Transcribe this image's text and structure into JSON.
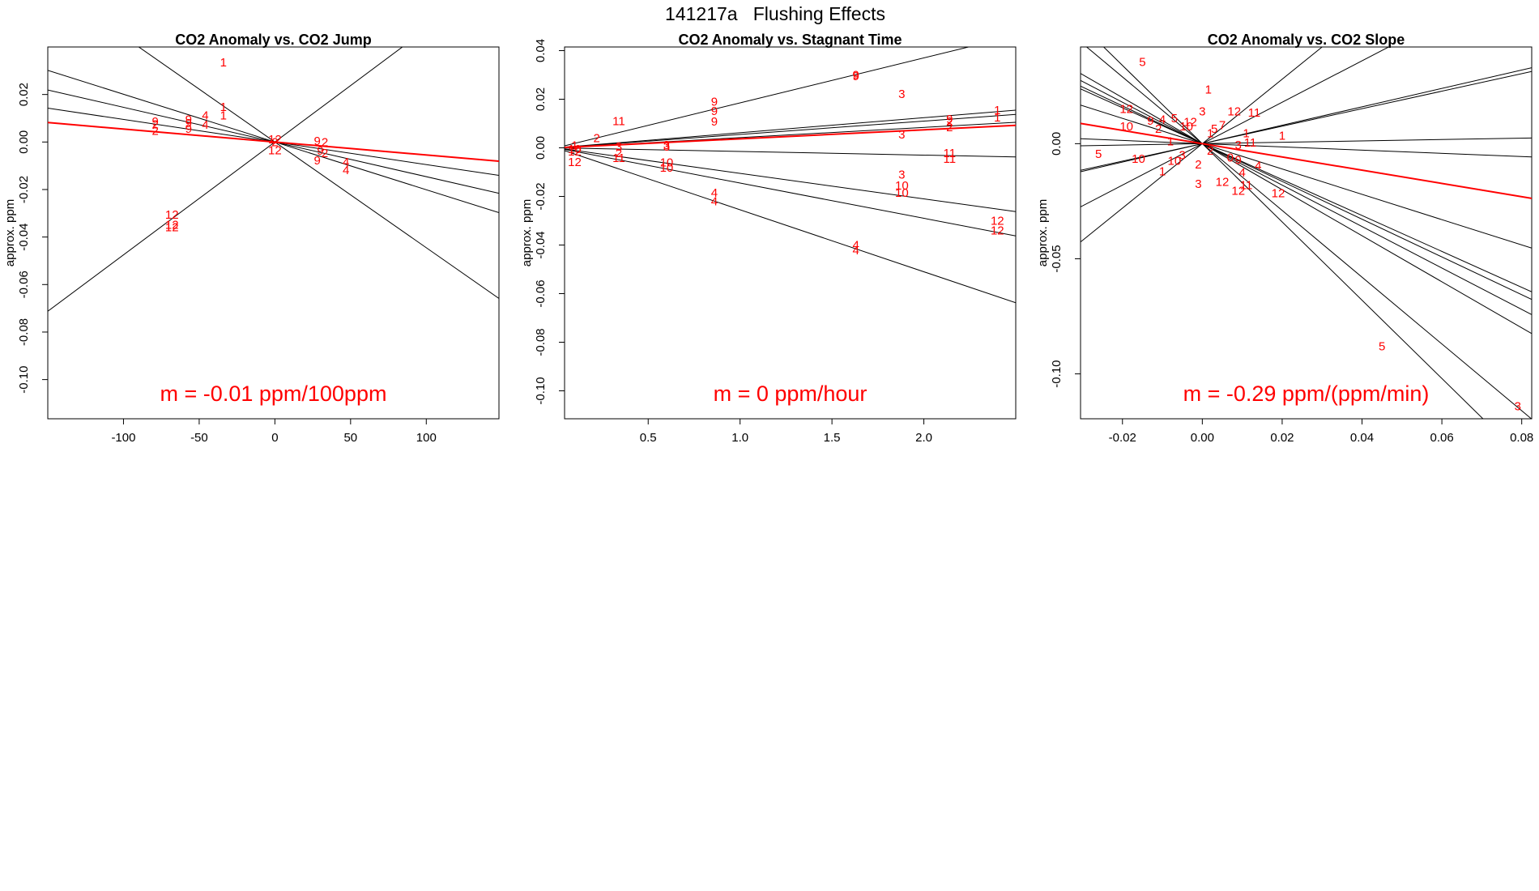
{
  "title": "141217a   Flushing Effects",
  "colors": {
    "fit": "#ff0000",
    "lines": "#000000",
    "points": "#ff0000"
  },
  "chart_data": [
    {
      "type": "scatter",
      "title": "CO2 Anomaly vs. CO2 Jump",
      "xlabel": "",
      "ylabel": "approx. ppm",
      "xlim": [
        -150,
        148
      ],
      "ylim": [
        -0.1165,
        0.04
      ],
      "xticks": [
        -100,
        -50,
        0,
        50,
        100
      ],
      "xtick_labels": [
        "-100",
        "-50",
        "0",
        "50",
        "100"
      ],
      "yticks": [
        -0.1,
        -0.08,
        -0.06,
        -0.04,
        -0.02,
        0.0,
        0.02
      ],
      "ytick_labels": [
        "-0.10",
        "-0.08",
        "-0.06",
        "-0.04",
        "-0.02",
        "0.00",
        "0.02"
      ],
      "slope_label": "m = -0.01 ppm/100ppm",
      "fit_slope": -5.46e-05,
      "line_slopes": [
        -0.000445,
        0.000475,
        -0.000201,
        -0.000146,
        -9.5e-05
      ],
      "points": [
        {
          "x": -34,
          "y": 0.0335,
          "label": "1"
        },
        {
          "x": -34,
          "y": 0.0148,
          "label": "1"
        },
        {
          "x": -34,
          "y": 0.0112,
          "label": "1"
        },
        {
          "x": -46,
          "y": 0.0112,
          "label": "4"
        },
        {
          "x": -46,
          "y": 0.0073,
          "label": "4"
        },
        {
          "x": -57,
          "y": 0.0094,
          "label": "9"
        },
        {
          "x": -57,
          "y": 0.008,
          "label": "9"
        },
        {
          "x": -57,
          "y": 0.0056,
          "label": "9"
        },
        {
          "x": -79,
          "y": 0.0087,
          "label": "9"
        },
        {
          "x": -79,
          "y": 0.0075,
          "label": "2"
        },
        {
          "x": -79,
          "y": 0.0047,
          "label": "2"
        },
        {
          "x": -68,
          "y": -0.0305,
          "label": "12"
        },
        {
          "x": -68,
          "y": -0.0348,
          "label": "12"
        },
        {
          "x": -68,
          "y": -0.0358,
          "label": "12"
        },
        {
          "x": 0,
          "y": 0.0012,
          "label": "12"
        },
        {
          "x": 0,
          "y": 0.0,
          "label": "2"
        },
        {
          "x": 0,
          "y": -0.0035,
          "label": "12"
        },
        {
          "x": 28,
          "y": 0.0005,
          "label": "9"
        },
        {
          "x": 33,
          "y": -0.0,
          "label": "2"
        },
        {
          "x": 30,
          "y": -0.0036,
          "label": "9"
        },
        {
          "x": 33,
          "y": -0.0047,
          "label": "2"
        },
        {
          "x": 28,
          "y": -0.0078,
          "label": "9"
        },
        {
          "x": 47,
          "y": -0.0085,
          "label": "4"
        },
        {
          "x": 47,
          "y": -0.0118,
          "label": "4"
        }
      ]
    },
    {
      "type": "scatter",
      "title": "CO2 Anomaly vs. Stagnant Time",
      "xlabel": "",
      "ylabel": "approx. ppm",
      "xlim": [
        0.045,
        2.5
      ],
      "ylim": [
        -0.1115,
        0.0415
      ],
      "xticks": [
        0.5,
        1.0,
        1.5,
        2.0
      ],
      "xtick_labels": [
        "0.5",
        "1.0",
        "1.5",
        "2.0"
      ],
      "yticks": [
        -0.1,
        -0.08,
        -0.06,
        -0.04,
        -0.02,
        0.0,
        0.02,
        0.04
      ],
      "ytick_labels": [
        "-0.10",
        "-0.08",
        "-0.06",
        "-0.04",
        "-0.02",
        "0.00",
        "0.02",
        "0.04"
      ],
      "slope_label": "m = 0 ppm/hour",
      "fit_slope": 0.0037,
      "line_slopes": [
        0.0185,
        0.0062,
        0.0055,
        0.0042,
        -0.0015,
        -0.0105,
        -0.0145,
        -0.0255
      ],
      "points": [
        {
          "x": 1.63,
          "y": 0.03,
          "label": "9"
        },
        {
          "x": 1.63,
          "y": 0.0295,
          "label": "9"
        },
        {
          "x": 0.86,
          "y": 0.019,
          "label": "9"
        },
        {
          "x": 0.86,
          "y": 0.0152,
          "label": "9"
        },
        {
          "x": 0.86,
          "y": 0.0108,
          "label": "9"
        },
        {
          "x": 0.34,
          "y": 0.011,
          "label": "11"
        },
        {
          "x": 0.22,
          "y": 0.004,
          "label": "2"
        },
        {
          "x": 0.1,
          "y": 0.001,
          "label": "1"
        },
        {
          "x": 0.1,
          "y": -0.0005,
          "label": "10"
        },
        {
          "x": 0.1,
          "y": -0.0015,
          "label": "12"
        },
        {
          "x": 0.1,
          "y": -0.0058,
          "label": "12"
        },
        {
          "x": 0.34,
          "y": 0.0005,
          "label": "3"
        },
        {
          "x": 0.34,
          "y": -0.0022,
          "label": "2"
        },
        {
          "x": 0.34,
          "y": -0.0042,
          "label": "11"
        },
        {
          "x": 0.6,
          "y": 0.0012,
          "label": "3"
        },
        {
          "x": 0.6,
          "y": 0.0005,
          "label": "3"
        },
        {
          "x": 0.6,
          "y": -0.006,
          "label": "10"
        },
        {
          "x": 0.6,
          "y": -0.0082,
          "label": "10"
        },
        {
          "x": 0.86,
          "y": -0.0185,
          "label": "4"
        },
        {
          "x": 0.86,
          "y": -0.022,
          "label": "4"
        },
        {
          "x": 1.63,
          "y": -0.04,
          "label": "4"
        },
        {
          "x": 1.63,
          "y": -0.0422,
          "label": "4"
        },
        {
          "x": 1.88,
          "y": 0.0222,
          "label": "3"
        },
        {
          "x": 1.88,
          "y": 0.0055,
          "label": "3"
        },
        {
          "x": 1.88,
          "y": -0.011,
          "label": "3"
        },
        {
          "x": 1.88,
          "y": -0.0155,
          "label": "10"
        },
        {
          "x": 1.88,
          "y": -0.0185,
          "label": "10"
        },
        {
          "x": 2.14,
          "y": 0.0118,
          "label": "9"
        },
        {
          "x": 2.14,
          "y": 0.0108,
          "label": "2"
        },
        {
          "x": 2.14,
          "y": 0.0085,
          "label": "2"
        },
        {
          "x": 2.14,
          "y": -0.0022,
          "label": "11"
        },
        {
          "x": 2.14,
          "y": -0.0045,
          "label": "11"
        },
        {
          "x": 2.4,
          "y": 0.0155,
          "label": "1"
        },
        {
          "x": 2.4,
          "y": 0.0125,
          "label": "1"
        },
        {
          "x": 2.4,
          "y": -0.03,
          "label": "12"
        },
        {
          "x": 2.4,
          "y": -0.034,
          "label": "12"
        }
      ]
    },
    {
      "type": "scatter",
      "title": "CO2 Anomaly vs. CO2 Slope",
      "xlabel": "",
      "ylabel": "approx. ppm",
      "xlim": [
        -0.0305,
        0.0825
      ],
      "ylim": [
        -0.1195,
        0.042
      ],
      "xticks": [
        -0.02,
        0.0,
        0.02,
        0.04,
        0.06,
        0.08
      ],
      "xtick_labels": [
        "-0.02",
        "0.00",
        "0.02",
        "0.04",
        "0.06",
        "0.08"
      ],
      "yticks": [
        -0.1,
        -0.05,
        0.0
      ],
      "ytick_labels": [
        "-0.10",
        "-0.05",
        "0.00"
      ],
      "slope_label": "m = -0.29 ppm/(ppm/min)",
      "fit_slope": -0.288,
      "line_slopes": [
        1.4,
        0.9,
        0.38,
        0.4,
        0.03,
        -0.07,
        -0.55,
        -0.78,
        -0.82,
        -0.9,
        -1.0,
        -1.7,
        -1.45
      ],
      "points": [
        {
          "x": -0.015,
          "y": 0.0355,
          "label": "5"
        },
        {
          "x": 0.0015,
          "y": 0.0235,
          "label": "1"
        },
        {
          "x": 0.0,
          "y": 0.014,
          "label": "3"
        },
        {
          "x": 0.008,
          "y": 0.014,
          "label": "12"
        },
        {
          "x": 0.013,
          "y": 0.0135,
          "label": "11"
        },
        {
          "x": -0.019,
          "y": 0.015,
          "label": "12"
        },
        {
          "x": -0.013,
          "y": 0.01,
          "label": "9"
        },
        {
          "x": -0.01,
          "y": 0.0105,
          "label": "4"
        },
        {
          "x": -0.007,
          "y": 0.011,
          "label": "5"
        },
        {
          "x": -0.003,
          "y": 0.0095,
          "label": "12"
        },
        {
          "x": -0.019,
          "y": 0.0075,
          "label": "10"
        },
        {
          "x": -0.011,
          "y": 0.0065,
          "label": "2"
        },
        {
          "x": -0.004,
          "y": 0.0075,
          "label": "10"
        },
        {
          "x": 0.005,
          "y": 0.008,
          "label": "7"
        },
        {
          "x": 0.003,
          "y": 0.0065,
          "label": "5"
        },
        {
          "x": 0.002,
          "y": 0.0045,
          "label": "1"
        },
        {
          "x": 0.011,
          "y": 0.0045,
          "label": "1"
        },
        {
          "x": 0.02,
          "y": 0.0035,
          "label": "1"
        },
        {
          "x": 0.012,
          "y": 0.0005,
          "label": "11"
        },
        {
          "x": -0.008,
          "y": 0.001,
          "label": "1"
        },
        {
          "x": 0.009,
          "y": -0.0005,
          "label": "3"
        },
        {
          "x": 0.002,
          "y": -0.003,
          "label": "2"
        },
        {
          "x": -0.005,
          "y": -0.005,
          "label": "3"
        },
        {
          "x": -0.007,
          "y": -0.0075,
          "label": "10"
        },
        {
          "x": -0.016,
          "y": -0.0065,
          "label": "10"
        },
        {
          "x": -0.026,
          "y": -0.0045,
          "label": "5"
        },
        {
          "x": -0.01,
          "y": -0.012,
          "label": "1"
        },
        {
          "x": -0.001,
          "y": -0.009,
          "label": "2"
        },
        {
          "x": 0.007,
          "y": -0.006,
          "label": "0"
        },
        {
          "x": 0.009,
          "y": -0.007,
          "label": "9"
        },
        {
          "x": 0.014,
          "y": -0.0095,
          "label": "4"
        },
        {
          "x": 0.01,
          "y": -0.0125,
          "label": "4"
        },
        {
          "x": -0.001,
          "y": -0.0175,
          "label": "3"
        },
        {
          "x": 0.005,
          "y": -0.0165,
          "label": "12"
        },
        {
          "x": 0.011,
          "y": -0.018,
          "label": "11"
        },
        {
          "x": 0.009,
          "y": -0.0205,
          "label": "12"
        },
        {
          "x": 0.019,
          "y": -0.0215,
          "label": "12"
        },
        {
          "x": 0.045,
          "y": -0.088,
          "label": "5"
        },
        {
          "x": 0.079,
          "y": -0.114,
          "label": "3"
        }
      ]
    }
  ]
}
